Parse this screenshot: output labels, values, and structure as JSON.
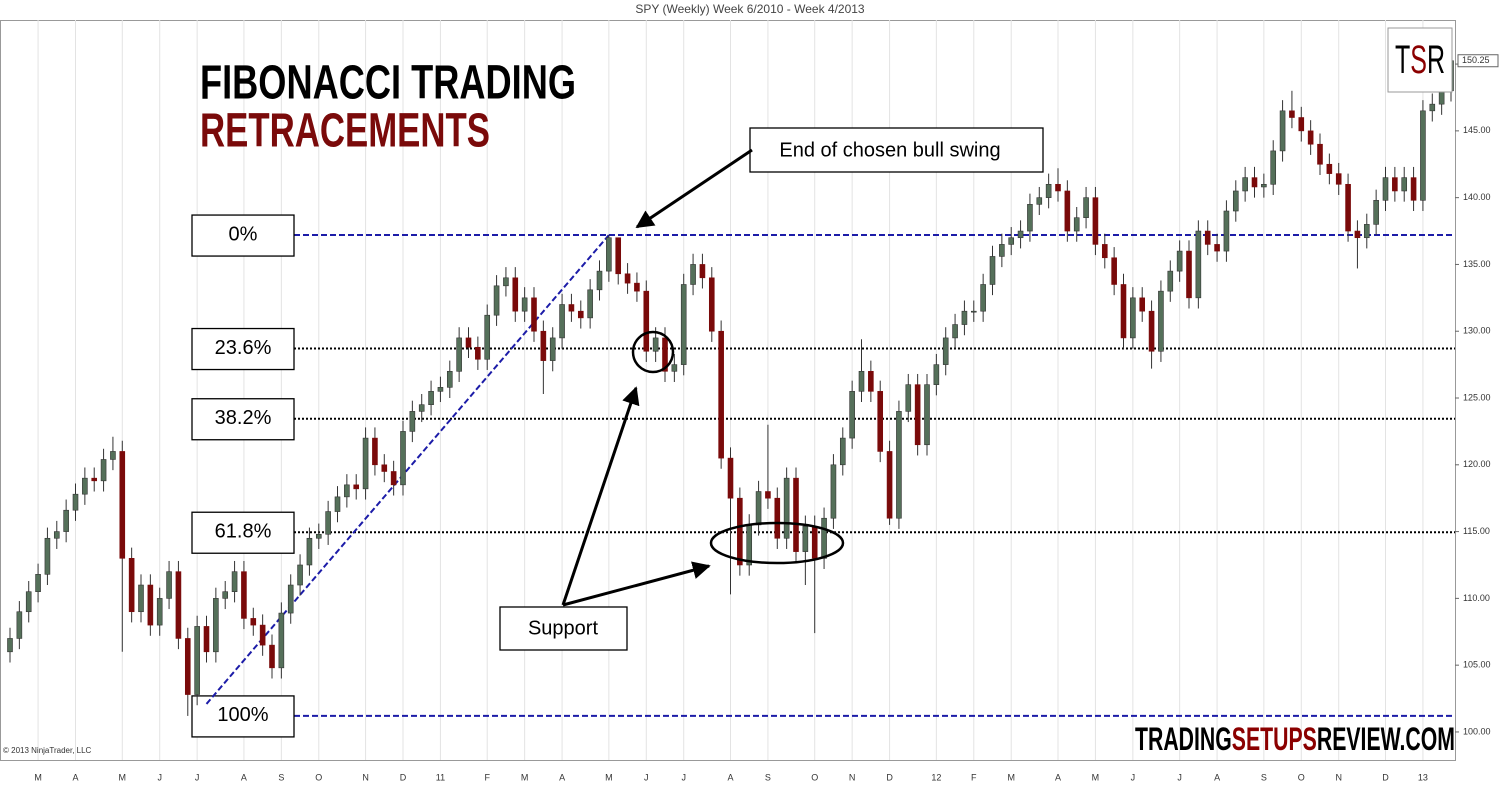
{
  "chart_data": {
    "type": "candlestick",
    "title": "SPY (Weekly)  Week 6/2010 - Week 4/2013",
    "headline": "FIBONACCI TRADING",
    "subheadline": "RETRACEMENTS",
    "copyright": "© 2013 NinjaTrader, LLC",
    "logo_mark": [
      "T",
      "S",
      "R"
    ],
    "watermark": [
      "TRADING",
      "SETUPS",
      "REVIEW.COM"
    ],
    "annotations": {
      "swing_end": "End of chosen bull swing",
      "support": "Support"
    },
    "last_price": 150.25,
    "up_color": "#55705a",
    "down_color": "#7a0a0a",
    "grid_x": true,
    "ylim": [
      97.9,
      153.3
    ],
    "yticks": [
      {
        "value": 100,
        "label": "100.00"
      },
      {
        "value": 105,
        "label": "105.00"
      },
      {
        "value": 110,
        "label": "110.00"
      },
      {
        "value": 115,
        "label": "115.00"
      },
      {
        "value": 120,
        "label": "120.00"
      },
      {
        "value": 125,
        "label": "125.00"
      },
      {
        "value": 130,
        "label": "130.00"
      },
      {
        "value": 135,
        "label": "135.00"
      },
      {
        "value": 140,
        "label": "140.00"
      },
      {
        "value": 145,
        "label": "145.00"
      },
      {
        "value": 150,
        "label": "150.00"
      }
    ],
    "fibonacci": {
      "low": 101.2,
      "high": 137.2,
      "low_week": 21,
      "high_week": 64,
      "levels": [
        {
          "value": 0,
          "label": "0%",
          "color": "#1c1ca8"
        },
        {
          "value": 23.6,
          "label": "23.6%",
          "color": "#000000"
        },
        {
          "value": 38.2,
          "label": "38.2%",
          "color": "#000000"
        },
        {
          "value": 61.8,
          "label": "61.8%",
          "color": "#000000"
        },
        {
          "value": 100,
          "label": "100%",
          "color": "#1c1ca8"
        }
      ]
    },
    "categories": [
      null,
      null,
      null,
      "M",
      null,
      null,
      null,
      "A",
      null,
      null,
      null,
      null,
      "M",
      null,
      null,
      null,
      "J",
      null,
      null,
      null,
      "J",
      null,
      null,
      null,
      null,
      "A",
      null,
      null,
      null,
      "S",
      null,
      null,
      null,
      "O",
      null,
      null,
      null,
      null,
      "N",
      null,
      null,
      null,
      "D",
      null,
      null,
      null,
      "11",
      null,
      null,
      null,
      null,
      "F",
      null,
      null,
      null,
      "M",
      null,
      null,
      null,
      "A",
      null,
      null,
      null,
      null,
      "M",
      null,
      null,
      null,
      "J",
      null,
      null,
      null,
      "J",
      null,
      null,
      null,
      null,
      "A",
      null,
      null,
      null,
      "S",
      null,
      null,
      null,
      null,
      "O",
      null,
      null,
      null,
      "N",
      null,
      null,
      null,
      "D",
      null,
      null,
      null,
      null,
      "12",
      null,
      null,
      null,
      "F",
      null,
      null,
      null,
      "M",
      null,
      null,
      null,
      null,
      "A",
      null,
      null,
      null,
      "M",
      null,
      null,
      null,
      "J",
      null,
      null,
      null,
      null,
      "J",
      null,
      null,
      null,
      "A",
      null,
      null,
      null,
      null,
      "S",
      null,
      null,
      null,
      "O",
      null,
      null,
      null,
      "N",
      null,
      null,
      null,
      null,
      "D",
      null,
      null,
      null,
      "13",
      null,
      null,
      null
    ],
    "open": [
      106.0,
      107.0,
      109.0,
      110.5,
      111.8,
      114.5,
      115.0,
      116.6,
      117.8,
      119.0,
      118.8,
      120.4,
      121.0,
      113.0,
      109.0,
      111.0,
      108.0,
      110.0,
      112.0,
      107.0,
      102.8,
      107.9,
      106.0,
      110.0,
      110.5,
      112.0,
      108.5,
      108.0,
      106.5,
      104.8,
      108.9,
      111.0,
      112.5,
      114.5,
      114.8,
      116.5,
      117.6,
      118.5,
      118.2,
      122.0,
      120.0,
      119.5,
      118.5,
      122.5,
      124.0,
      124.5,
      125.5,
      125.8,
      127.0,
      129.5,
      128.8,
      127.9,
      131.2,
      133.4,
      134.0,
      131.5,
      132.5,
      130.0,
      127.8,
      129.5,
      132.0,
      131.5,
      131.0,
      133.1,
      134.5,
      137.0,
      134.3,
      133.6,
      133.0,
      128.5,
      129.5,
      127.0,
      127.5,
      133.5,
      135.0,
      134.0,
      130.0,
      120.5,
      117.5,
      112.5,
      115.5,
      118.0,
      117.5,
      114.5,
      119.0,
      113.5,
      115.4,
      113.0,
      116.0,
      120.0,
      122.0,
      125.5,
      127.0,
      125.5,
      121.0,
      116.0,
      124.0,
      126.0,
      121.5,
      126.0,
      127.5,
      129.5,
      130.5,
      131.5,
      131.5,
      133.5,
      135.6,
      136.5,
      137.0,
      137.5,
      139.5,
      140.0,
      141.0,
      140.5,
      137.5,
      138.5,
      140.0,
      136.5,
      135.5,
      133.5,
      129.5,
      132.5,
      131.5,
      128.5,
      133.0,
      134.5,
      136.0,
      132.5,
      137.5,
      136.5,
      136.0,
      139.0,
      140.5,
      141.5,
      140.8,
      141.0,
      143.5,
      146.5,
      146.0,
      145.0,
      144.0,
      142.5,
      141.8,
      141.0,
      137.5,
      137.0,
      138.0,
      139.8,
      141.5,
      140.5,
      141.5,
      139.8,
      146.5,
      147.0,
      148.0
    ],
    "high": [
      107.8,
      109.8,
      111.3,
      112.6,
      115.3,
      115.8,
      117.4,
      118.6,
      119.8,
      119.8,
      121.2,
      122.1,
      121.8,
      113.8,
      111.8,
      111.8,
      110.8,
      112.8,
      112.8,
      107.8,
      108.7,
      108.7,
      110.8,
      111.3,
      112.8,
      112.8,
      109.3,
      108.8,
      107.3,
      109.7,
      111.8,
      113.3,
      115.3,
      115.6,
      117.3,
      118.4,
      119.3,
      119.3,
      122.8,
      122.8,
      120.8,
      120.3,
      123.3,
      124.8,
      125.3,
      126.3,
      126.6,
      127.8,
      130.3,
      130.3,
      129.6,
      132.0,
      134.2,
      134.8,
      134.8,
      133.3,
      133.3,
      130.8,
      130.3,
      132.8,
      132.8,
      132.3,
      133.9,
      135.3,
      137.2,
      137.0,
      135.1,
      134.4,
      133.8,
      130.3,
      130.3,
      128.3,
      134.3,
      135.8,
      135.8,
      134.8,
      130.8,
      121.3,
      118.3,
      116.3,
      118.8,
      123.0,
      118.3,
      119.8,
      119.8,
      116.2,
      116.2,
      116.8,
      120.8,
      122.8,
      126.3,
      129.4,
      127.8,
      126.3,
      121.8,
      124.8,
      126.8,
      126.8,
      126.8,
      128.3,
      130.3,
      131.3,
      132.3,
      132.3,
      134.3,
      136.4,
      137.3,
      137.8,
      138.3,
      140.3,
      140.8,
      141.8,
      142.2,
      141.3,
      139.3,
      140.8,
      140.8,
      137.3,
      136.3,
      134.3,
      133.3,
      133.3,
      132.3,
      133.8,
      135.3,
      136.8,
      136.8,
      138.3,
      138.3,
      137.3,
      139.8,
      141.3,
      142.3,
      142.3,
      141.8,
      144.3,
      147.3,
      148.0,
      146.8,
      145.8,
      144.8,
      143.3,
      142.6,
      141.8,
      138.3,
      138.8,
      140.6,
      142.3,
      142.3,
      142.3,
      142.3,
      147.3,
      147.8,
      148.8,
      150.8
    ],
    "low": [
      105.2,
      106.2,
      108.2,
      109.7,
      111.0,
      113.7,
      114.2,
      115.8,
      117.0,
      118.0,
      118.0,
      119.6,
      106.0,
      108.2,
      108.2,
      107.2,
      107.2,
      109.2,
      106.2,
      101.2,
      102.0,
      105.2,
      105.2,
      109.2,
      109.7,
      107.7,
      107.2,
      105.7,
      104.0,
      104.0,
      108.1,
      110.2,
      111.7,
      113.7,
      114.0,
      115.7,
      116.8,
      117.4,
      117.4,
      119.2,
      118.7,
      117.7,
      117.7,
      121.7,
      123.2,
      123.7,
      124.7,
      125.0,
      126.2,
      128.0,
      127.1,
      127.1,
      130.4,
      132.6,
      130.7,
      130.7,
      129.2,
      125.3,
      127.0,
      128.7,
      130.7,
      130.2,
      130.2,
      132.3,
      133.7,
      133.5,
      132.8,
      132.2,
      127.7,
      127.7,
      126.2,
      126.2,
      126.7,
      132.7,
      133.2,
      129.2,
      119.7,
      110.3,
      111.7,
      111.7,
      114.7,
      116.7,
      113.7,
      113.7,
      112.7,
      111.0,
      107.4,
      112.2,
      115.2,
      119.2,
      121.2,
      124.7,
      124.7,
      120.2,
      115.5,
      115.2,
      123.2,
      120.7,
      120.7,
      125.2,
      126.7,
      128.7,
      129.7,
      130.7,
      130.7,
      132.7,
      134.8,
      135.7,
      136.2,
      136.7,
      138.7,
      139.2,
      139.7,
      136.7,
      136.7,
      137.7,
      135.7,
      134.7,
      132.7,
      128.7,
      128.7,
      130.7,
      127.2,
      127.7,
      132.2,
      133.7,
      131.7,
      131.7,
      135.7,
      135.2,
      135.2,
      138.2,
      139.7,
      140.0,
      140.0,
      140.2,
      142.7,
      145.2,
      144.2,
      143.2,
      141.7,
      141.0,
      140.2,
      136.7,
      134.7,
      136.2,
      137.2,
      139.0,
      139.7,
      139.7,
      139.0,
      139.0,
      145.7,
      146.2,
      147.2
    ],
    "close": [
      107.0,
      109.0,
      110.5,
      111.8,
      114.5,
      115.0,
      116.6,
      117.8,
      119.0,
      118.8,
      120.4,
      121.0,
      113.0,
      109.0,
      111.0,
      108.0,
      110.0,
      112.0,
      107.0,
      102.8,
      107.9,
      106.0,
      110.0,
      110.5,
      112.0,
      108.5,
      108.0,
      106.5,
      104.8,
      108.9,
      111.0,
      112.5,
      114.5,
      114.8,
      116.5,
      117.6,
      118.5,
      118.2,
      122.0,
      120.0,
      119.5,
      118.5,
      122.5,
      124.0,
      124.5,
      125.5,
      125.8,
      127.0,
      129.5,
      128.8,
      127.9,
      131.2,
      133.4,
      134.0,
      131.5,
      132.5,
      130.0,
      127.8,
      129.5,
      132.0,
      131.5,
      131.0,
      133.1,
      134.5,
      137.0,
      134.3,
      133.6,
      133.0,
      128.5,
      129.5,
      127.0,
      127.5,
      133.5,
      135.0,
      134.0,
      130.0,
      120.5,
      117.5,
      112.5,
      115.5,
      118.0,
      117.5,
      114.5,
      119.0,
      113.5,
      115.4,
      113.0,
      116.0,
      120.0,
      122.0,
      125.5,
      127.0,
      125.5,
      121.0,
      116.0,
      124.0,
      126.0,
      121.5,
      126.0,
      127.5,
      129.5,
      130.5,
      131.5,
      131.5,
      133.5,
      135.6,
      136.5,
      137.0,
      137.5,
      139.5,
      140.0,
      141.0,
      140.5,
      137.5,
      138.5,
      140.0,
      136.5,
      135.5,
      133.5,
      129.5,
      132.5,
      131.5,
      128.5,
      133.0,
      134.5,
      136.0,
      132.5,
      137.5,
      136.5,
      136.0,
      139.0,
      140.5,
      141.5,
      140.8,
      141.0,
      143.5,
      146.5,
      146.0,
      145.0,
      144.0,
      142.5,
      141.8,
      141.0,
      137.5,
      137.0,
      138.0,
      139.8,
      141.5,
      140.5,
      141.5,
      139.8,
      146.5,
      147.0,
      148.0,
      150.25
    ]
  }
}
